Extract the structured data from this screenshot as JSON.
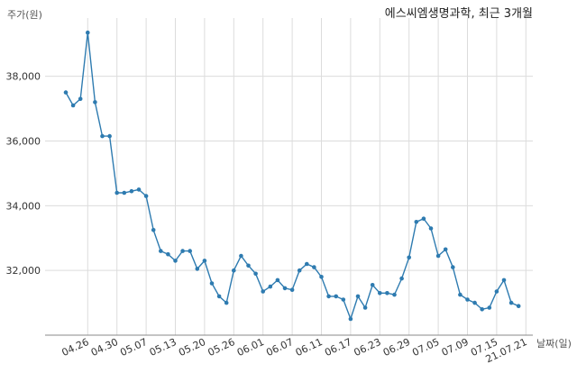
{
  "chart_data": {
    "type": "line",
    "title": "에스씨엠생명과학, 최근 3개월",
    "ylabel": "주가(원)",
    "xlabel": "날짜(일)",
    "ylim": [
      30000,
      39800
    ],
    "yticks": [
      32000,
      34000,
      36000,
      38000
    ],
    "ytick_labels": [
      "32,000",
      "34,000",
      "36,000",
      "38,000"
    ],
    "grid": true,
    "line_color": "#2e7bb0",
    "xtick_labels": [
      "04.26",
      "04.30",
      "05.07",
      "05.13",
      "05.20",
      "05.26",
      "06.01",
      "06.07",
      "06.11",
      "06.17",
      "06.23",
      "06.29",
      "07.05",
      "07.09",
      "07.15",
      "21.07.21"
    ],
    "xtick_index": [
      3,
      7,
      11,
      15,
      19,
      23,
      27,
      31,
      35,
      39,
      43,
      47,
      51,
      55,
      59,
      63
    ],
    "series": [
      {
        "values": [
          37500,
          37100,
          37300,
          39350,
          37200,
          36150,
          36150,
          34400,
          34400,
          34450,
          34500,
          34300,
          33250,
          32600,
          32500,
          32300,
          32600,
          32600,
          32050,
          32300,
          31600,
          31200,
          31000,
          32000,
          32450,
          32150,
          31900,
          31350,
          31500,
          31700,
          31450,
          31400,
          32000,
          32200,
          32100,
          31800,
          31200,
          31200,
          31100,
          30500,
          31200,
          30850,
          31550,
          31300,
          31300,
          31250,
          31750,
          32400,
          33500,
          33600,
          33300,
          32450,
          32650,
          32100,
          31250,
          31100,
          31000,
          30800,
          30850,
          31350,
          31700,
          31000,
          30900
        ]
      }
    ]
  }
}
